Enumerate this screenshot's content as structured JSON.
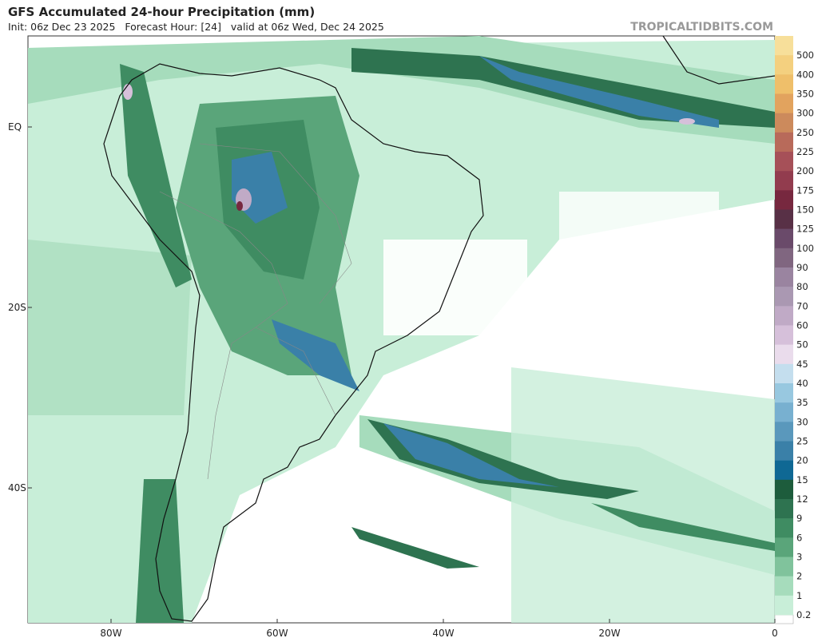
{
  "header": {
    "title": "GFS Accumulated 24-hour Precipitation (mm)",
    "subtitle": "Init: 06z Dec 23 2025   Forecast Hour: [24]   valid at 06z Wed, Dec 24 2025",
    "site": "TROPICALTIDBITS.COM"
  },
  "map": {
    "lat_labels": [
      "EQ",
      "20S",
      "40S"
    ],
    "lon_labels": [
      "80W",
      "60W",
      "40W",
      "20W",
      "0"
    ]
  },
  "legend": {
    "items": [
      {
        "label": "500",
        "color": "#f7df9a"
      },
      {
        "label": "400",
        "color": "#f4d07f"
      },
      {
        "label": "350",
        "color": "#efbf6a"
      },
      {
        "label": "300",
        "color": "#e2a35e"
      },
      {
        "label": "250",
        "color": "#cc8a5c"
      },
      {
        "label": "225",
        "color": "#b86a5a"
      },
      {
        "label": "200",
        "color": "#a65058"
      },
      {
        "label": "175",
        "color": "#923c4e"
      },
      {
        "label": "150",
        "color": "#77283f"
      },
      {
        "label": "125",
        "color": "#583046"
      },
      {
        "label": "100",
        "color": "#6a4a6a"
      },
      {
        "label": "90",
        "color": "#806680"
      },
      {
        "label": "80",
        "color": "#9a84a0"
      },
      {
        "label": "70",
        "color": "#aa98b2"
      },
      {
        "label": "60",
        "color": "#c0aac6"
      },
      {
        "label": "50",
        "color": "#d6c0da"
      },
      {
        "label": "45",
        "color": "#eadcec"
      },
      {
        "label": "40",
        "color": "#c4deee"
      },
      {
        "label": "35",
        "color": "#98c8e0"
      },
      {
        "label": "30",
        "color": "#78b0d0"
      },
      {
        "label": "25",
        "color": "#5a98bc"
      },
      {
        "label": "20",
        "color": "#3a80a8"
      },
      {
        "label": "15",
        "color": "#0f6894"
      },
      {
        "label": "12",
        "color": "#1d5c3c"
      },
      {
        "label": "9",
        "color": "#2e7350"
      },
      {
        "label": "6",
        "color": "#3f8c62"
      },
      {
        "label": "3",
        "color": "#5aa57a"
      },
      {
        "label": "2",
        "color": "#80c39c"
      },
      {
        "label": "1",
        "color": "#a6dcbc"
      },
      {
        "label": "0.2",
        "color": "#c8eed8"
      }
    ]
  }
}
